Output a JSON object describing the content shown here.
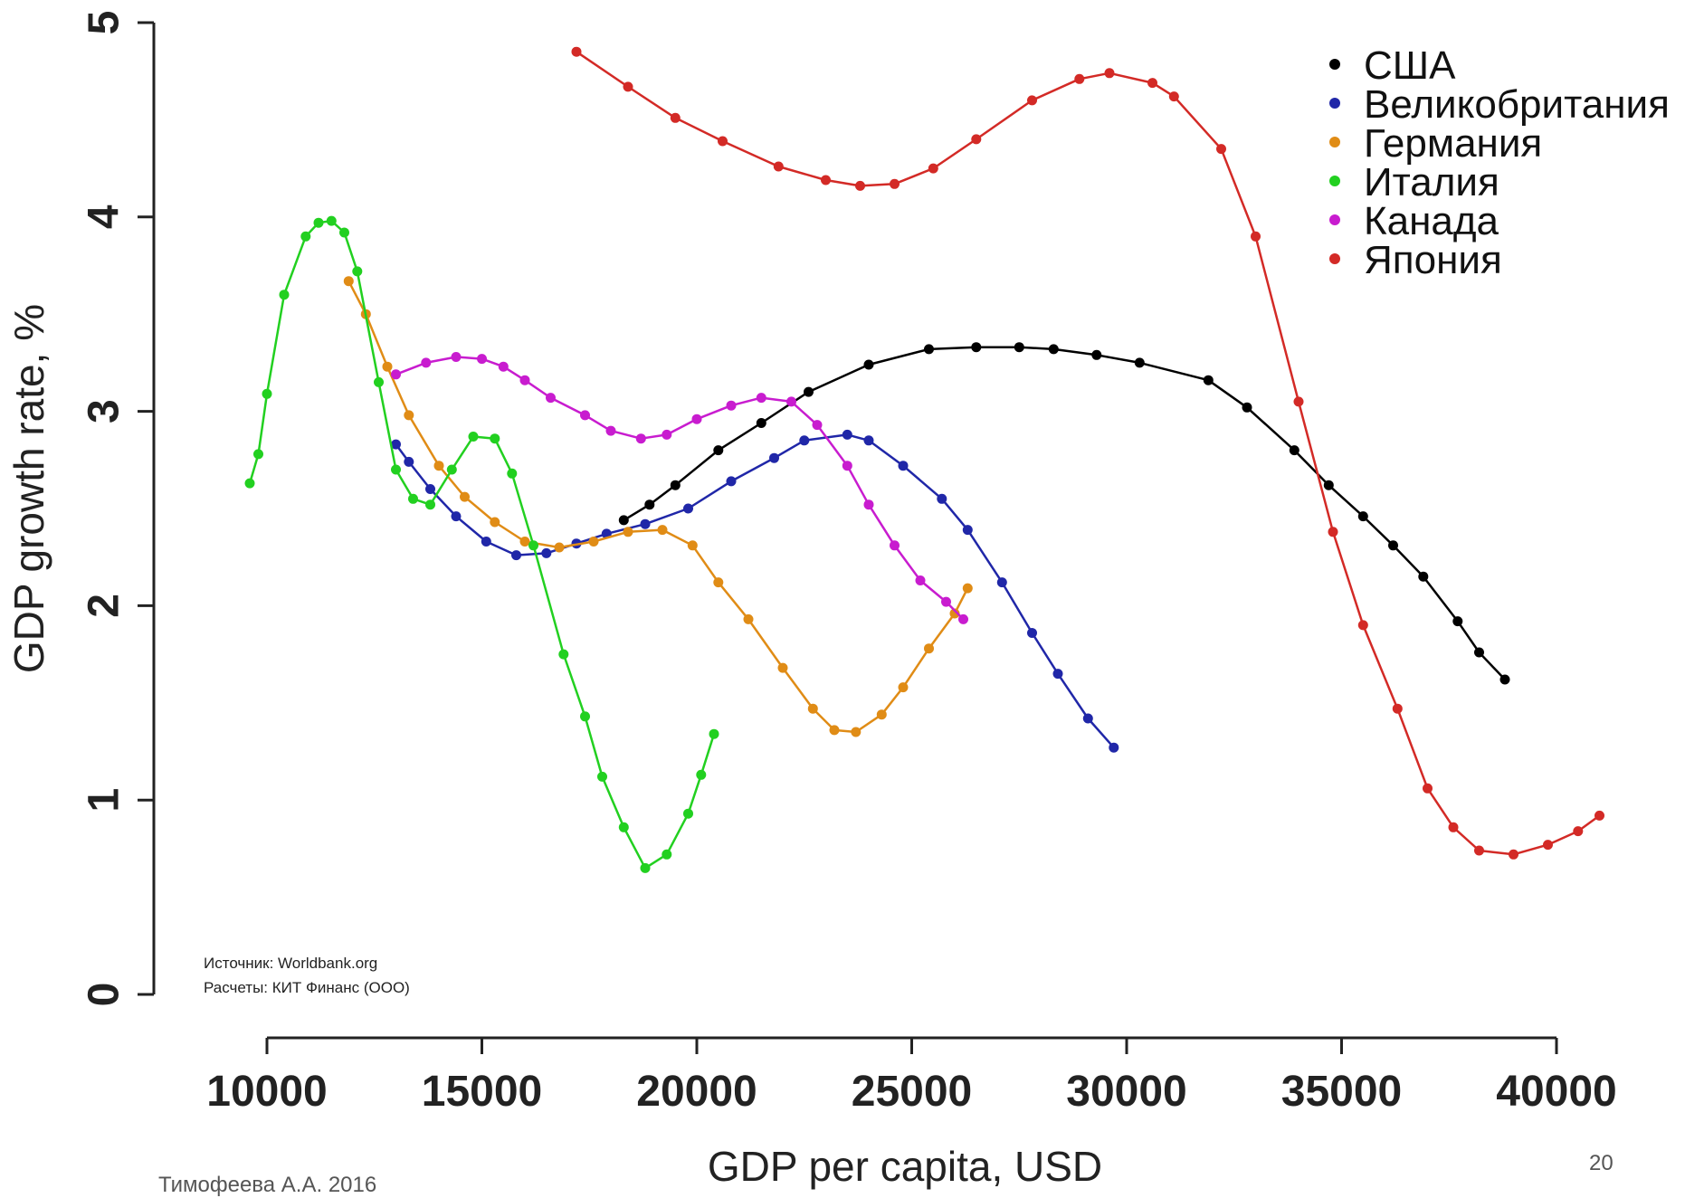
{
  "chart_data": {
    "type": "line",
    "title": "",
    "xlabel": "GDP per capita, USD",
    "ylabel": "GDP growth rate, %",
    "xlim": [
      9500,
      41000
    ],
    "ylim": [
      0,
      5
    ],
    "xticks": [
      10000,
      15000,
      20000,
      25000,
      30000,
      35000,
      40000
    ],
    "xtick_labels": [
      "10000",
      "15000",
      "20000",
      "25000",
      "30000",
      "35000",
      "40000"
    ],
    "yticks": [
      0,
      1,
      2,
      3,
      4,
      5
    ],
    "ytick_labels": [
      "0",
      "1",
      "2",
      "3",
      "4",
      "5"
    ],
    "grid": false,
    "legend_position": "top-right",
    "series": [
      {
        "name": "США",
        "color": "#000000",
        "x": [
          18300,
          18900,
          19500,
          20500,
          21500,
          22600,
          24000,
          25400,
          26500,
          27500,
          28300,
          29300,
          30300,
          31900,
          32800,
          33900,
          34700,
          35500,
          36200,
          36900,
          37700,
          38200,
          38800
        ],
        "y": [
          2.44,
          2.52,
          2.62,
          2.8,
          2.94,
          3.1,
          3.24,
          3.32,
          3.33,
          3.33,
          3.32,
          3.29,
          3.25,
          3.16,
          3.02,
          2.8,
          2.62,
          2.46,
          2.31,
          2.15,
          1.92,
          1.76,
          1.62
        ]
      },
      {
        "name": "Великобритания",
        "color": "#2027a8",
        "x": [
          13000,
          13300,
          13800,
          14400,
          15100,
          15800,
          16500,
          17200,
          17900,
          18800,
          19800,
          20800,
          21800,
          22500,
          23500,
          24000,
          24800,
          25700,
          26300,
          27100,
          27800,
          28400,
          29100,
          29700
        ],
        "y": [
          2.83,
          2.74,
          2.6,
          2.46,
          2.33,
          2.26,
          2.27,
          2.32,
          2.37,
          2.42,
          2.5,
          2.64,
          2.76,
          2.85,
          2.88,
          2.85,
          2.72,
          2.55,
          2.39,
          2.12,
          1.86,
          1.65,
          1.42,
          1.27
        ]
      },
      {
        "name": "Германия",
        "color": "#e08c16",
        "x": [
          11900,
          12300,
          12800,
          13300,
          14000,
          14600,
          15300,
          16000,
          16800,
          17600,
          18400,
          19200,
          19900,
          20500,
          21200,
          22000,
          22700,
          23200,
          23700,
          24300,
          24800,
          25400,
          26000,
          26300
        ],
        "y": [
          3.67,
          3.5,
          3.23,
          2.98,
          2.72,
          2.56,
          2.43,
          2.33,
          2.3,
          2.33,
          2.38,
          2.39,
          2.31,
          2.12,
          1.93,
          1.68,
          1.47,
          1.36,
          1.35,
          1.44,
          1.58,
          1.78,
          1.96,
          2.09
        ]
      },
      {
        "name": "Италия",
        "color": "#22d020",
        "x": [
          9600,
          9800,
          10000,
          10400,
          10900,
          11200,
          11500,
          11800,
          12100,
          12600,
          13000,
          13400,
          13800,
          14300,
          14800,
          15300,
          15700,
          16200,
          16900,
          17400,
          17800,
          18300,
          18800,
          19300,
          19800,
          20100,
          20400
        ],
        "y": [
          2.63,
          2.78,
          3.09,
          3.6,
          3.9,
          3.97,
          3.98,
          3.92,
          3.72,
          3.15,
          2.7,
          2.55,
          2.52,
          2.7,
          2.87,
          2.86,
          2.68,
          2.31,
          1.75,
          1.43,
          1.12,
          0.86,
          0.65,
          0.72,
          0.93,
          1.13,
          1.34
        ]
      },
      {
        "name": "Канада",
        "color": "#c81ccf",
        "x": [
          13000,
          13700,
          14400,
          15000,
          15500,
          16000,
          16600,
          17400,
          18000,
          18700,
          19300,
          20000,
          20800,
          21500,
          22200,
          22800,
          23500,
          24000,
          24600,
          25200,
          25800,
          26200
        ],
        "y": [
          3.19,
          3.25,
          3.28,
          3.27,
          3.23,
          3.16,
          3.07,
          2.98,
          2.9,
          2.86,
          2.88,
          2.96,
          3.03,
          3.07,
          3.05,
          2.93,
          2.72,
          2.52,
          2.31,
          2.13,
          2.02,
          1.93
        ]
      },
      {
        "name": "Япония",
        "color": "#d32a26",
        "x": [
          17200,
          18400,
          19500,
          20600,
          21900,
          23000,
          23800,
          24600,
          25500,
          26500,
          27800,
          28900,
          29600,
          30600,
          31100,
          32200,
          33000,
          34000,
          34800,
          35500,
          36300,
          37000,
          37600,
          38200,
          39000,
          39800,
          40500,
          41000
        ],
        "y": [
          4.85,
          4.67,
          4.51,
          4.39,
          4.26,
          4.19,
          4.16,
          4.17,
          4.25,
          4.4,
          4.6,
          4.71,
          4.74,
          4.69,
          4.62,
          4.35,
          3.9,
          3.05,
          2.38,
          1.9,
          1.47,
          1.06,
          0.86,
          0.74,
          0.72,
          0.77,
          0.84,
          0.92
        ]
      }
    ],
    "annotations": [
      "Источник: Worldbank.org",
      "Расчеты: КИТ Финанс (ООО)"
    ]
  },
  "footer": {
    "author": "Тимофеева А.А. 2016",
    "slide_number": "20"
  }
}
